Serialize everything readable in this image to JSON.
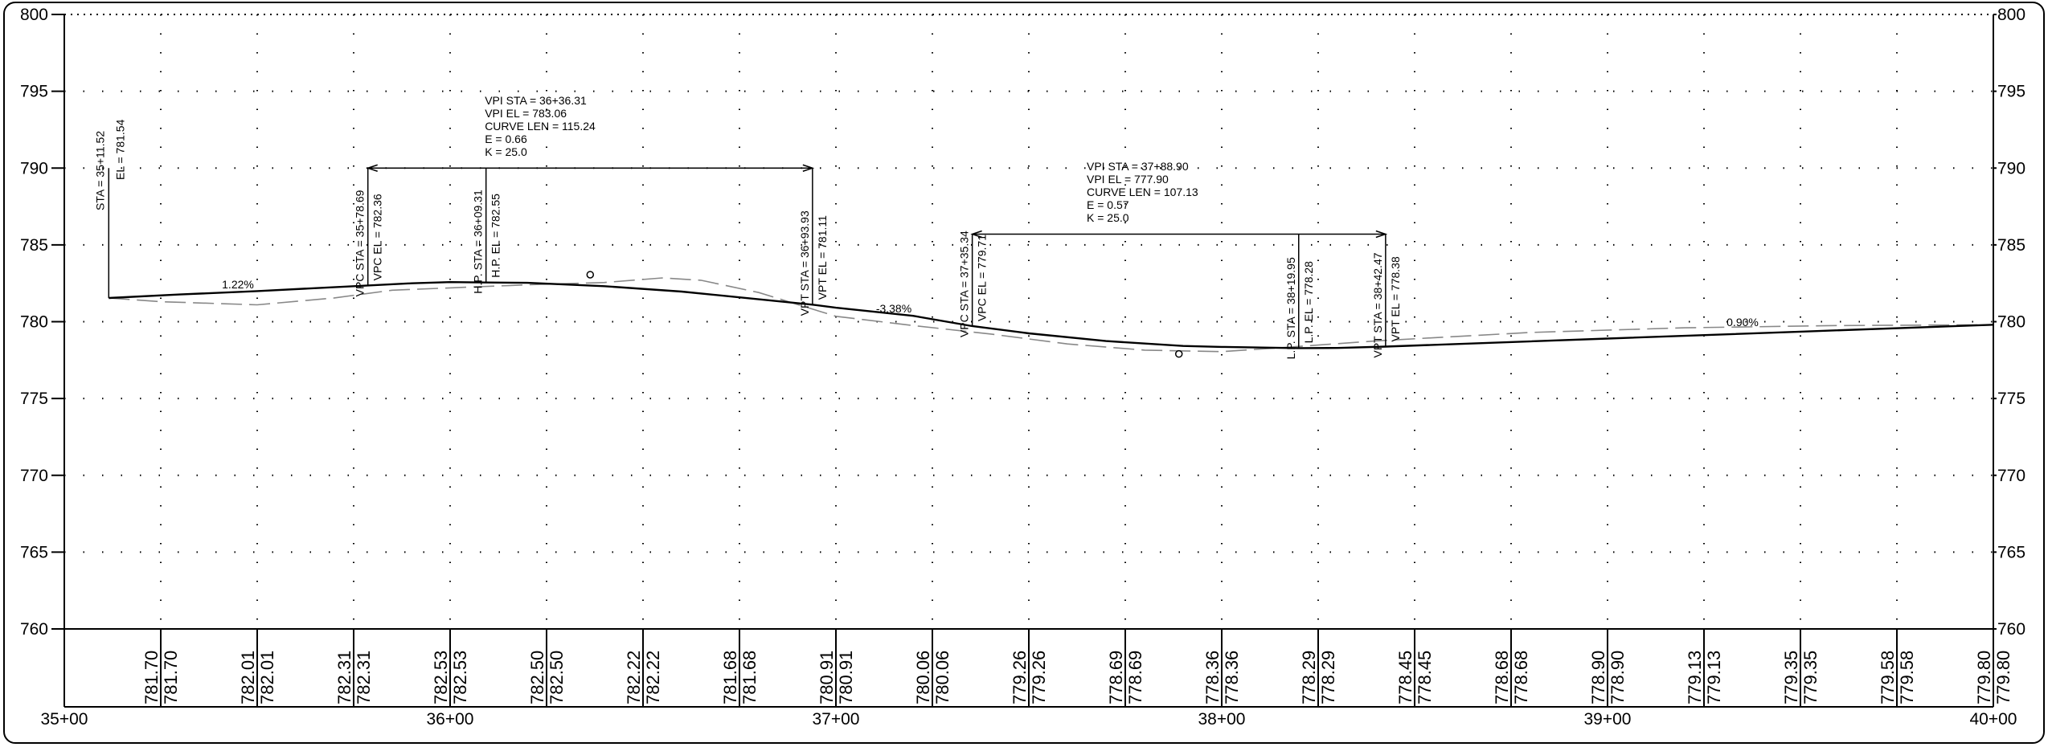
{
  "elevation_ticks": [
    "800",
    "795",
    "790",
    "785",
    "780",
    "775",
    "770",
    "765",
    "760"
  ],
  "station_ticks": [
    "35+00",
    "36+00",
    "37+00",
    "38+00",
    "39+00",
    "40+00"
  ],
  "chart_data": {
    "type": "line",
    "x_unit": "station",
    "xlim": [
      3500,
      4000
    ],
    "ylim": [
      760,
      800
    ],
    "grid": "dotted",
    "series": [
      {
        "line": "proposed-profile",
        "points": [
          [
            3511.52,
            781.54
          ],
          [
            3530,
            781.77
          ],
          [
            3550,
            781.99
          ],
          [
            3578.69,
            782.36
          ],
          [
            3590,
            782.5
          ],
          [
            3600,
            782.58
          ],
          [
            3609.31,
            782.55
          ],
          [
            3620,
            782.53
          ],
          [
            3640,
            782.31
          ],
          [
            3660,
            781.96
          ],
          [
            3693.93,
            781.11
          ],
          [
            3700,
            780.91
          ],
          [
            3720,
            780.38
          ],
          [
            3735.34,
            779.71
          ],
          [
            3750,
            779.24
          ],
          [
            3770,
            778.74
          ],
          [
            3790,
            778.42
          ],
          [
            3800,
            778.36
          ],
          [
            3819.95,
            778.28
          ],
          [
            3830,
            778.29
          ],
          [
            3842.47,
            778.38
          ],
          [
            3900,
            778.9
          ],
          [
            3950,
            779.35
          ],
          [
            4000,
            779.8
          ]
        ]
      },
      {
        "line": "existing-ground",
        "points": [
          [
            3511.52,
            781.54
          ],
          [
            3525,
            781.3
          ],
          [
            3550,
            781.1
          ],
          [
            3570,
            781.55
          ],
          [
            3585,
            782.05
          ],
          [
            3600,
            782.2
          ],
          [
            3620,
            782.4
          ],
          [
            3640,
            782.55
          ],
          [
            3655,
            782.85
          ],
          [
            3665,
            782.7
          ],
          [
            3680,
            781.9
          ],
          [
            3700,
            780.35
          ],
          [
            3720,
            779.75
          ],
          [
            3740,
            779.2
          ],
          [
            3760,
            778.55
          ],
          [
            3780,
            778.15
          ],
          [
            3800,
            778.05
          ],
          [
            3815,
            778.3
          ],
          [
            3840,
            778.75
          ],
          [
            3880,
            779.3
          ],
          [
            3920,
            779.6
          ],
          [
            3960,
            779.75
          ],
          [
            4000,
            779.8
          ]
        ]
      }
    ]
  },
  "vpis": [
    {
      "sta": 3511.52,
      "el": 781.54,
      "label_sta": "STA = 35+11.52",
      "label_el": "EL = 781.54"
    },
    {
      "sta": 3636.31,
      "el": 783.06
    },
    {
      "sta": 3788.9,
      "el": 777.9
    }
  ],
  "curves": [
    {
      "vpc_sta": 3578.69,
      "vpt_sta": 3693.93,
      "bar_el": 790,
      "info": [
        "VPI STA = 36+36.31",
        "VPI EL = 783.06",
        "CURVE LEN = 115.24",
        "E = 0.66",
        "K = 25.0"
      ],
      "vpc": {
        "elev": 782.36,
        "label_sta": "VPC STA = 35+78.69",
        "label_el": "VPC EL = 782.36"
      },
      "mid": {
        "sta": 3609.31,
        "elev": 782.55,
        "label_sta": "H.P. STA = 36+09.31",
        "label_el": "H.P. EL = 782.55"
      },
      "vpt": {
        "elev": 781.11,
        "label_sta": "VPT STA = 36+93.93",
        "label_el": "VPT EL = 781.11"
      }
    },
    {
      "vpc_sta": 3735.34,
      "vpt_sta": 3842.47,
      "bar_el": 785.7,
      "info": [
        "VPI STA = 37+88.90",
        "VPI EL = 777.90",
        "CURVE LEN = 107.13",
        "E = 0.57",
        "K = 25.0"
      ],
      "vpc": {
        "elev": 779.71,
        "label_sta": "VPC STA = 37+35.34",
        "label_el": "VPC EL = 779.71"
      },
      "mid": {
        "sta": 3819.95,
        "elev": 778.28,
        "label_sta": "L.P. STA = 38+19.95",
        "label_el": "L.P. EL = 778.28"
      },
      "vpt": {
        "elev": 778.38,
        "label_sta": "VPT STA = 38+42.47",
        "label_el": "VPT EL = 778.38"
      }
    }
  ],
  "grades": [
    {
      "text": "1.22%",
      "sta": 3545,
      "el": 781.85
    },
    {
      "text": "-3.38%",
      "sta": 3715,
      "el": 780.3
    },
    {
      "text": "0.90%",
      "sta": 3935,
      "el": 779.4
    }
  ],
  "elevation_table": [
    {
      "sta": 3525,
      "proposed": "781.70",
      "existing": "781.70"
    },
    {
      "sta": 3550,
      "proposed": "782.01",
      "existing": "782.01"
    },
    {
      "sta": 3575,
      "proposed": "782.31",
      "existing": "782.31"
    },
    {
      "sta": 3600,
      "proposed": "782.53",
      "existing": "782.53"
    },
    {
      "sta": 3625,
      "proposed": "782.50",
      "existing": "782.50"
    },
    {
      "sta": 3650,
      "proposed": "782.22",
      "existing": "782.22"
    },
    {
      "sta": 3675,
      "proposed": "781.68",
      "existing": "781.68"
    },
    {
      "sta": 3700,
      "proposed": "780.91",
      "existing": "780.91"
    },
    {
      "sta": 3725,
      "proposed": "780.06",
      "existing": "780.06"
    },
    {
      "sta": 3750,
      "proposed": "779.26",
      "existing": "779.26"
    },
    {
      "sta": 3775,
      "proposed": "778.69",
      "existing": "778.69"
    },
    {
      "sta": 3800,
      "proposed": "778.36",
      "existing": "778.36"
    },
    {
      "sta": 3825,
      "proposed": "778.29",
      "existing": "778.29"
    },
    {
      "sta": 3850,
      "proposed": "778.45",
      "existing": "778.45"
    },
    {
      "sta": 3875,
      "proposed": "778.68",
      "existing": "778.68"
    },
    {
      "sta": 3900,
      "proposed": "778.90",
      "existing": "778.90"
    },
    {
      "sta": 3925,
      "proposed": "779.13",
      "existing": "779.13"
    },
    {
      "sta": 3950,
      "proposed": "779.35",
      "existing": "779.35"
    },
    {
      "sta": 3975,
      "proposed": "779.58",
      "existing": "779.58"
    },
    {
      "sta": 4000,
      "proposed": "779.80",
      "existing": "779.80"
    }
  ]
}
